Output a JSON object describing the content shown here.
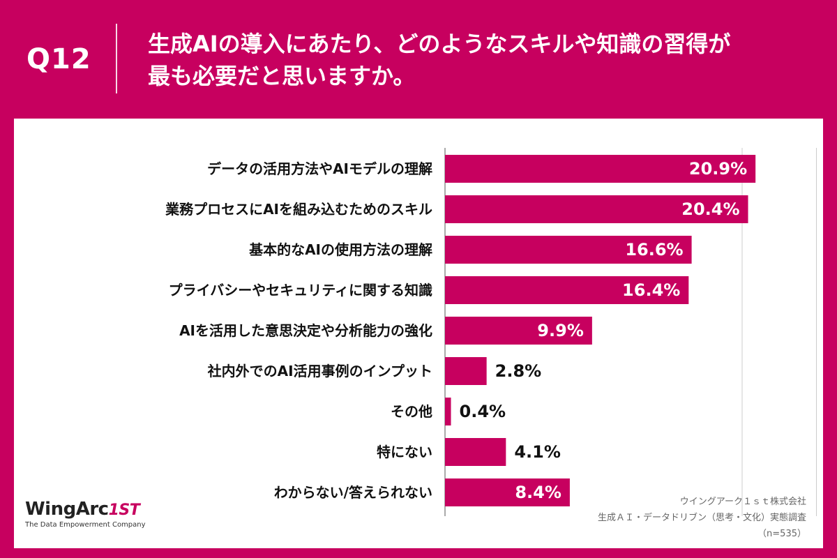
{
  "header": {
    "question_number": "Q12",
    "question_line1": "生成AIの導入にあたり、どのようなスキルや知識の習得が",
    "question_line2": "最も必要だと思いますか。"
  },
  "colors": {
    "bar": "#C7005F",
    "background": "#C7005F",
    "panel": "#FFFFFF",
    "grid": "#CCCCCC"
  },
  "chart_data": {
    "type": "bar",
    "orientation": "horizontal",
    "title": "生成AIの導入にあたり、どのようなスキルや知識の習得が最も必要だと思いますか。",
    "xlim": [
      0,
      25
    ],
    "gridlines_at": [
      20,
      25
    ],
    "value_unit": "%",
    "categories": [
      "データの活用方法やAIモデルの理解",
      "業務プロセスにAIを組み込むためのスキル",
      "基本的なAIの使用方法の理解",
      "プライバシーやセキュリティに関する知識",
      "AIを活用した意思決定や分析能力の強化",
      "社内外でのAI活用事例のインプット",
      "その他",
      "特にない",
      "わからない/答えられない"
    ],
    "values": [
      20.9,
      20.4,
      16.6,
      16.4,
      9.9,
      2.8,
      0.4,
      4.1,
      8.4
    ],
    "labels": [
      "20.9%",
      "20.4%",
      "16.6%",
      "16.4%",
      "9.9%",
      "2.8%",
      "0.4%",
      "4.1%",
      "8.4%"
    ]
  },
  "logo": {
    "brand": "WingArc",
    "mark_digit": "1",
    "mark_suffix": "ST",
    "tagline": "The Data Empowerment Company"
  },
  "source": {
    "line1": "ウイングアーク１ｓｔ株式会社",
    "line2": "生成ＡＩ・データドリブン（思考・文化）実態調査",
    "line3": "（n=535）"
  }
}
